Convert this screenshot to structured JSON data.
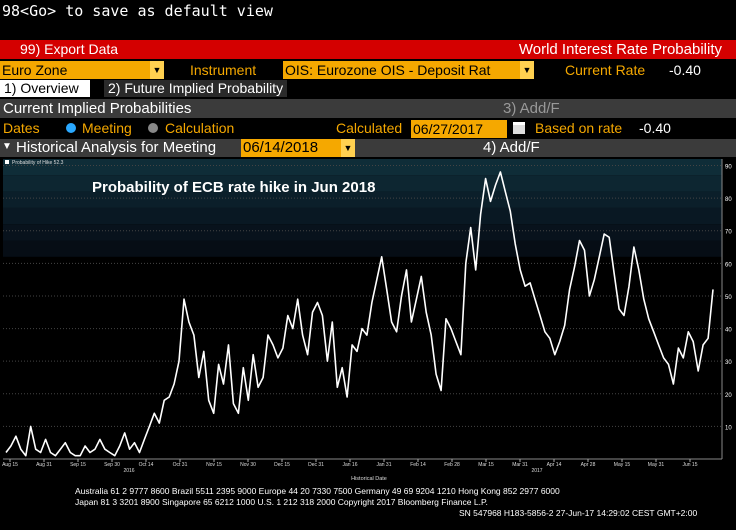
{
  "command_line": "98<Go> to save as default view",
  "menu": {
    "export_label": "99) Export Data",
    "page_title": "World Interest Rate Probability"
  },
  "instrument_bar": {
    "region_value": "Euro Zone",
    "instrument_label": "Instrument",
    "instrument_value": "OIS: Eurozone OIS - Deposit Rat",
    "current_rate_label": "Current Rate",
    "current_rate_value": "-0.40"
  },
  "tabs": [
    {
      "label": "1) Overview"
    },
    {
      "label": "2) Future Implied Probability"
    }
  ],
  "current_implied": {
    "title": "Current Implied Probabilities",
    "add_label": "3) Add/F"
  },
  "dates_row": {
    "dates_label": "Dates",
    "meeting_label": "Meeting",
    "calculation_label": "Calculation",
    "calculated_label": "Calculated",
    "calculated_value": "06/27/2017",
    "based_on_label": "Based on rate",
    "based_on_value": "-0.40"
  },
  "historical": {
    "title": "Historical Analysis for Meeting",
    "meeting_value": "06/14/2018",
    "add_label": "4) Add/F"
  },
  "chart_data": {
    "type": "line",
    "title": "Probability of ECB rate hike in Jun 2018",
    "legend": "Probability of Hike 52.3",
    "xlabel": "Historical Date",
    "ylim": [
      0,
      92
    ],
    "yticks": [
      10,
      20,
      30,
      40,
      50,
      60,
      70,
      80,
      90
    ],
    "xtick_labels": [
      "Aug 15",
      "Aug 31",
      "Sep 15",
      "Sep 30",
      "Oct 14",
      "Oct 31",
      "Nov 15",
      "Nov 30",
      "Dec 15",
      "Dec 31",
      "Jan 16",
      "Jan 31",
      "Feb 14",
      "Feb 28",
      "Mar 15",
      "Mar 31",
      "Apr 14",
      "Apr 28",
      "May 15",
      "May 31",
      "Jun 15"
    ],
    "year_labels": [
      {
        "after_tick": 3,
        "text": "2016"
      },
      {
        "after_tick": 15,
        "text": "2017"
      }
    ],
    "series": [
      {
        "values": [
          2,
          4,
          7,
          3,
          1,
          10,
          3,
          2,
          6,
          2,
          1,
          3,
          5,
          2,
          1,
          1,
          4,
          2,
          3,
          6,
          3,
          2,
          1,
          4,
          8,
          3,
          5,
          2,
          6,
          10,
          14,
          11,
          18,
          19,
          23,
          30,
          49,
          42,
          38,
          25,
          33,
          18,
          14,
          29,
          23,
          35,
          17,
          14,
          28,
          18,
          32,
          22,
          25,
          38,
          35,
          31,
          34,
          44,
          40,
          49,
          38,
          32,
          45,
          48,
          44,
          30,
          42,
          22,
          28,
          19,
          35,
          33,
          40,
          38,
          48,
          55,
          62,
          52,
          42,
          39,
          50,
          58,
          42,
          49,
          56,
          45,
          38,
          26,
          21,
          43,
          40,
          36,
          32,
          60,
          71,
          58,
          75,
          86,
          79,
          84,
          88,
          82,
          76,
          66,
          58,
          53,
          54,
          49,
          44,
          39,
          37,
          32,
          36,
          41,
          52,
          59,
          67,
          64,
          50,
          55,
          62,
          69,
          68,
          57,
          46,
          44,
          53,
          65,
          58,
          49,
          43,
          39,
          35,
          31,
          29,
          23,
          34,
          31,
          39,
          36,
          27,
          35,
          37,
          52
        ]
      }
    ]
  },
  "footer": {
    "line1": "Australia 61 2 9777 8600 Brazil 5511 2395 9000 Europe 44 20 7330 7500 Germany 49 69 9204 1210 Hong Kong 852 2977 6000",
    "line2": "Japan 81 3 3201 8900     Singapore 65 6212 1000     U.S. 1 212 318 2000          Copyright 2017 Bloomberg Finance L.P.",
    "line3": "SN 547968 H183-5856-2 27-Jun-17 14:29:02 CEST GMT+2:00"
  },
  "colors": {
    "amber": "#f5a800",
    "red_bar": "#d40000",
    "panel_grey": "#3b3b3b",
    "chart_line": "#ffffff"
  }
}
